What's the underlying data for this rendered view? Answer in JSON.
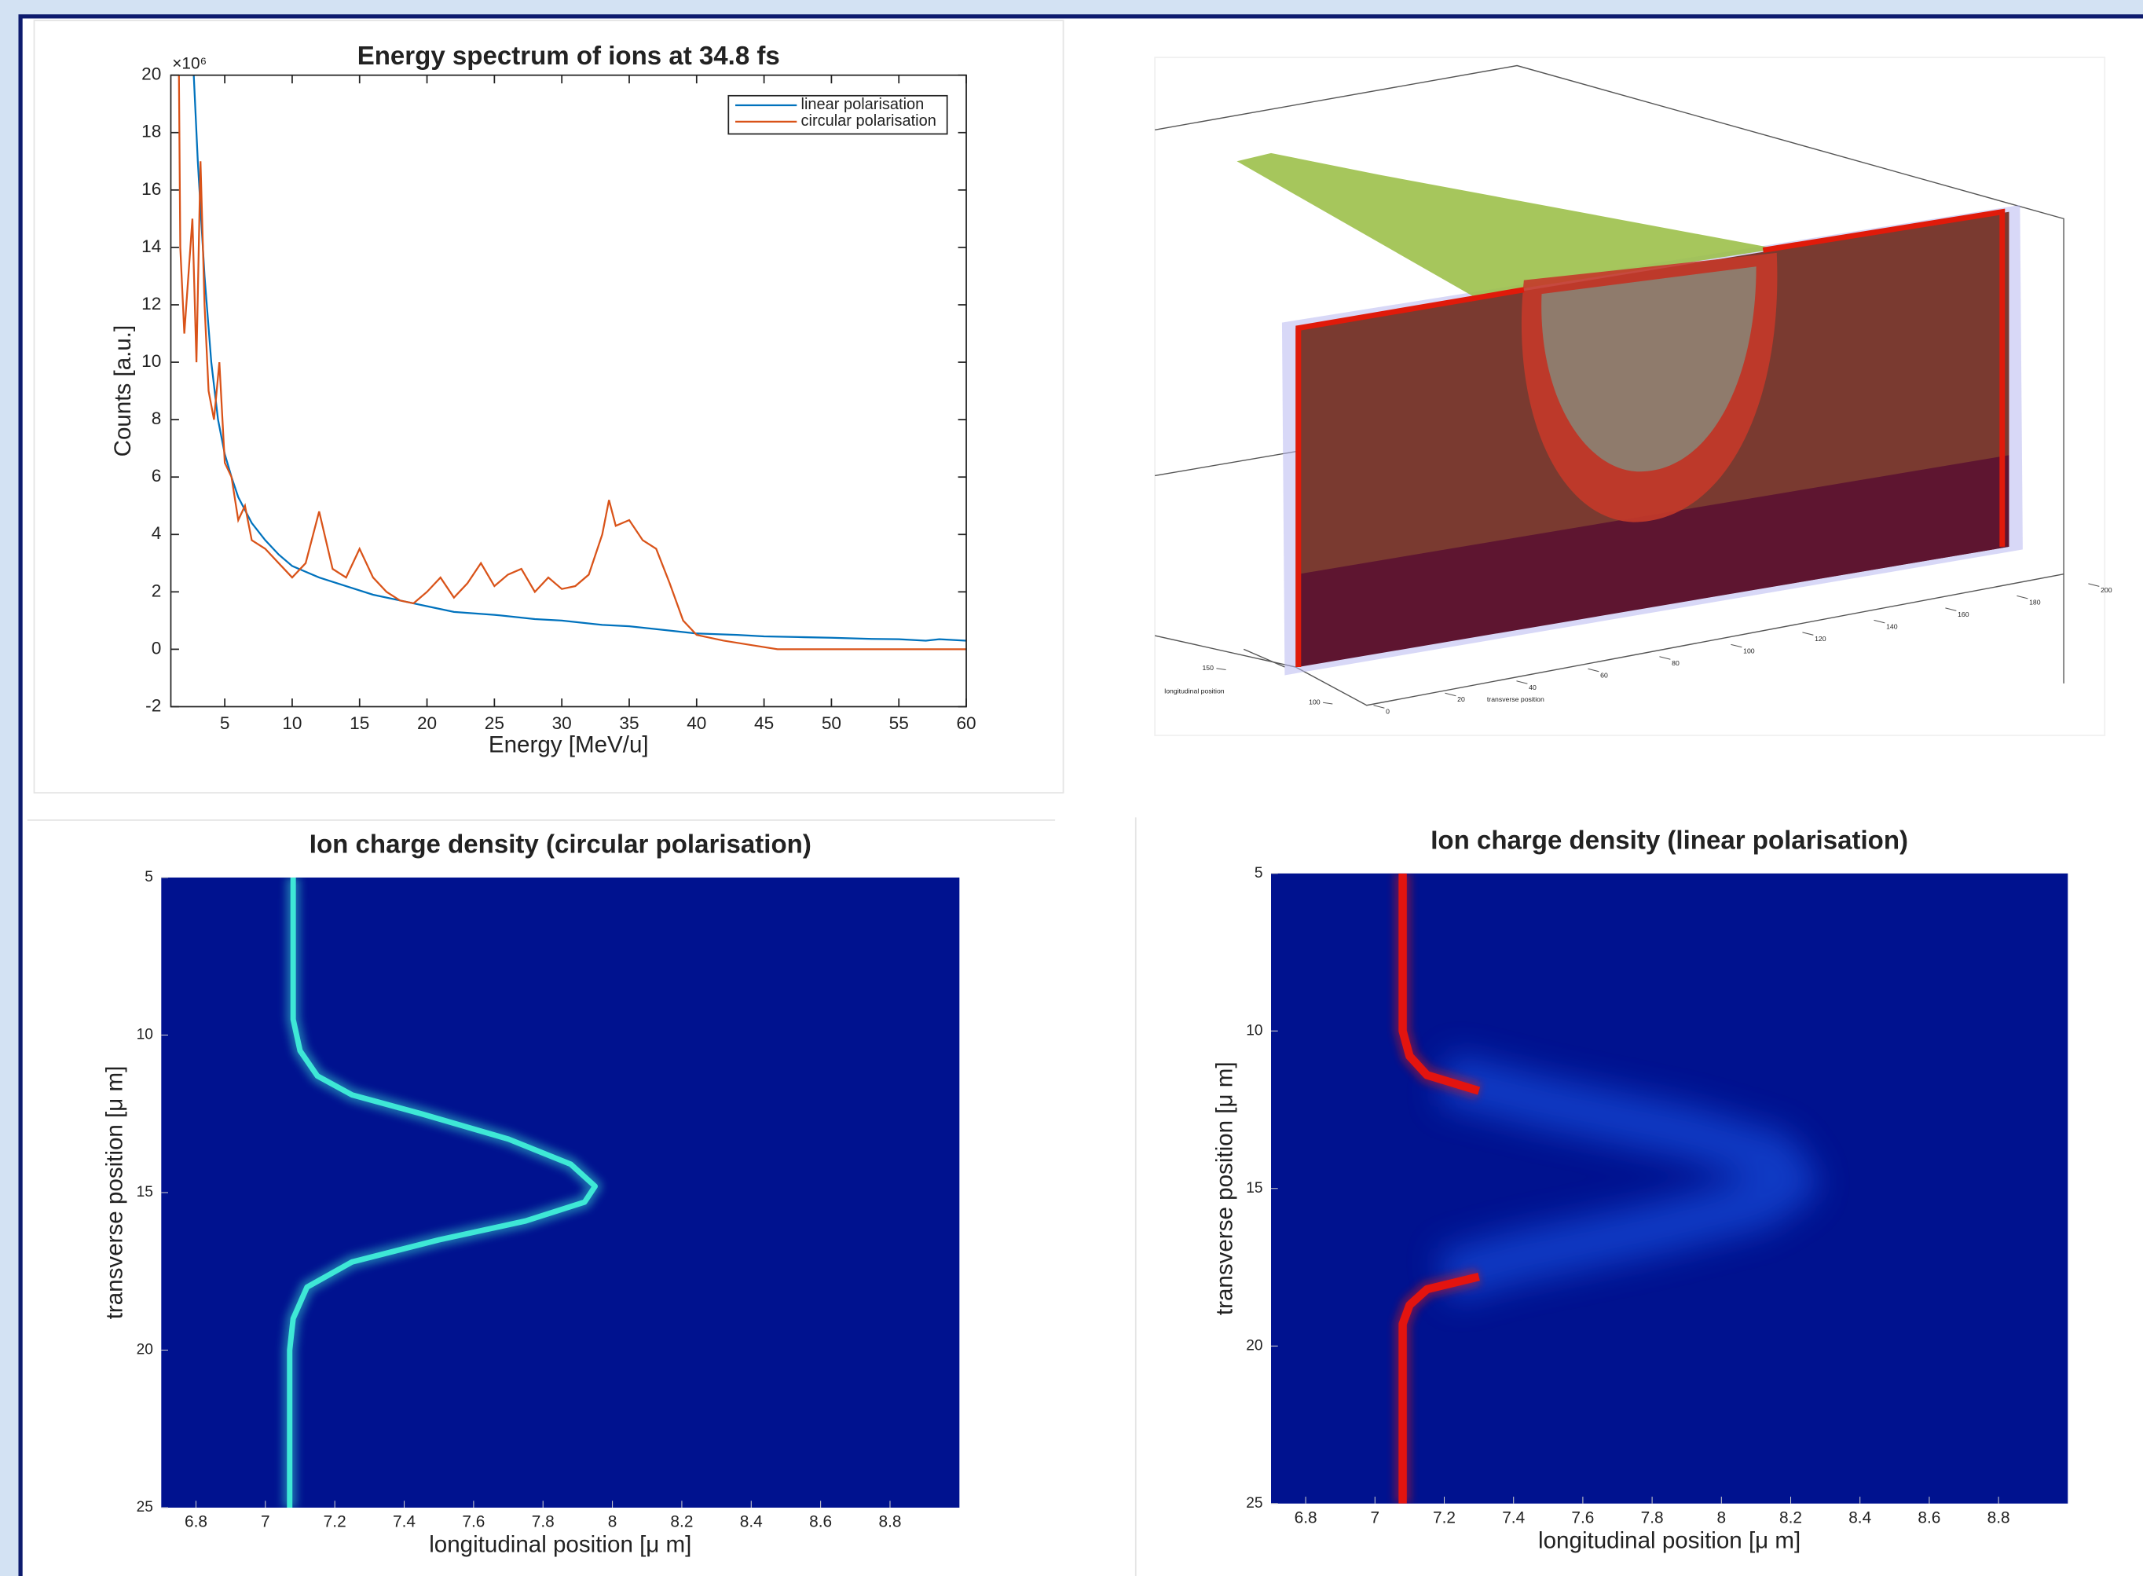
{
  "chart_data": [
    {
      "type": "line",
      "title": "Energy spectrum of ions at 34.8 fs",
      "xlabel": "Energy [MeV/u]",
      "ylabel": "Counts [a.u.]",
      "y_exponent_label": "×10⁶",
      "xlim": [
        1,
        60
      ],
      "xticks": [
        5,
        10,
        15,
        20,
        25,
        30,
        35,
        40,
        45,
        50,
        55,
        60
      ],
      "ylim": [
        -2,
        20
      ],
      "yticks": [
        -2,
        0,
        2,
        4,
        6,
        8,
        10,
        12,
        14,
        16,
        18,
        20
      ],
      "legend": "top-right",
      "series": [
        {
          "name": "linear polarisation",
          "color": "#0072bd",
          "x": [
            2.7,
            3,
            3.5,
            4,
            4.5,
            5,
            5.5,
            6,
            7,
            8,
            9,
            10,
            12,
            14,
            16,
            18,
            20,
            22,
            25,
            28,
            30,
            33,
            35,
            38,
            40,
            43,
            45,
            48,
            50,
            53,
            55,
            57,
            58,
            60
          ],
          "values": [
            20,
            17,
            13,
            10,
            8,
            6.8,
            6,
            5.3,
            4.4,
            3.8,
            3.3,
            2.9,
            2.5,
            2.2,
            1.9,
            1.7,
            1.5,
            1.3,
            1.2,
            1.05,
            1,
            0.85,
            0.8,
            0.65,
            0.55,
            0.5,
            0.45,
            0.42,
            0.4,
            0.36,
            0.35,
            0.3,
            0.35,
            0.3
          ]
        },
        {
          "name": "circular polarisation",
          "color": "#d95319",
          "x": [
            1.6,
            1.7,
            2,
            2.3,
            2.6,
            2.9,
            3.2,
            3.5,
            3.8,
            4.2,
            4.6,
            5,
            5.5,
            6,
            6.5,
            7,
            8,
            9,
            10,
            11,
            12,
            13,
            14,
            15,
            16,
            17,
            18,
            19,
            20,
            21,
            22,
            23,
            24,
            25,
            26,
            27,
            28,
            29,
            30,
            31,
            32,
            33,
            33.5,
            34,
            35,
            36,
            37,
            38,
            39,
            40,
            42,
            44,
            46,
            50,
            60
          ],
          "values": [
            20,
            14,
            11,
            13,
            15,
            10,
            17,
            12,
            9,
            8,
            10,
            6.5,
            6,
            4.5,
            5,
            3.8,
            3.5,
            3,
            2.5,
            3,
            4.8,
            2.8,
            2.5,
            3.5,
            2.5,
            2,
            1.7,
            1.6,
            2,
            2.5,
            1.8,
            2.3,
            3,
            2.2,
            2.6,
            2.8,
            2,
            2.5,
            2.1,
            2.2,
            2.6,
            4,
            5.2,
            4.3,
            4.5,
            3.8,
            3.5,
            2.3,
            1,
            0.5,
            0.3,
            0.15,
            0,
            0,
            0
          ]
        }
      ]
    },
    {
      "type": "surface3d",
      "xlabel": "transverse position",
      "ylabel": "longitudinal position",
      "xlim": [
        0,
        200
      ],
      "xticks": [
        0,
        20,
        40,
        60,
        80,
        100,
        120,
        140,
        160,
        180,
        200
      ],
      "ylim": [
        100,
        150
      ],
      "yticks": [
        100,
        150
      ]
    },
    {
      "type": "heatmap",
      "title": "Ion charge density (circular polarisation)",
      "xlabel": "longitudinal position [μ m]",
      "ylabel": "transverse position [μ m]",
      "xlim": [
        6.7,
        9.0
      ],
      "xticks": [
        6.8,
        7,
        7.2,
        7.4,
        7.6,
        7.8,
        8,
        8.2,
        8.4,
        8.6,
        8.8
      ],
      "ylim": [
        5,
        25
      ],
      "yticks": [
        5,
        10,
        15,
        20,
        25
      ],
      "y_reversed": true,
      "background": "#00128f",
      "curves": [
        {
          "color": "#3ee8d6",
          "x": [
            7.08,
            7.08,
            7.1,
            7.15,
            7.25,
            7.45,
            7.7,
            7.88,
            7.95,
            7.92,
            7.75,
            7.5,
            7.25,
            7.12,
            7.08,
            7.07,
            7.07
          ],
          "y": [
            5,
            9.5,
            10.5,
            11.3,
            11.9,
            12.5,
            13.3,
            14.1,
            14.8,
            15.3,
            15.9,
            16.5,
            17.2,
            18,
            19,
            20,
            25
          ]
        }
      ]
    },
    {
      "type": "heatmap",
      "title": "Ion charge density (linear polarisation)",
      "xlabel": "longitudinal position [μ m]",
      "ylabel": "transverse position [μ m]",
      "xlim": [
        6.7,
        9.0
      ],
      "xticks": [
        6.8,
        7,
        7.2,
        7.4,
        7.6,
        7.8,
        8,
        8.2,
        8.4,
        8.6,
        8.8
      ],
      "ylim": [
        5,
        25
      ],
      "yticks": [
        5,
        10,
        15,
        20,
        25
      ],
      "y_reversed": true,
      "background": "#00128f",
      "curves": [
        {
          "color": "#1f5cf0",
          "x": [
            7.2,
            7.5,
            7.9,
            8.15,
            8.2,
            8.1,
            7.8,
            7.4,
            7.2
          ],
          "y": [
            11.5,
            12.3,
            13.2,
            14,
            14.8,
            15.5,
            16.3,
            17.2,
            17.8
          ]
        },
        {
          "color": "#e3140f",
          "x": [
            7.08,
            7.08,
            7.1,
            7.15,
            7.3,
            null,
            7.3,
            7.15,
            7.1,
            7.08,
            7.08
          ],
          "y": [
            5,
            10,
            10.8,
            11.4,
            11.9,
            null,
            17.8,
            18.2,
            18.7,
            19.3,
            25
          ]
        }
      ]
    }
  ]
}
